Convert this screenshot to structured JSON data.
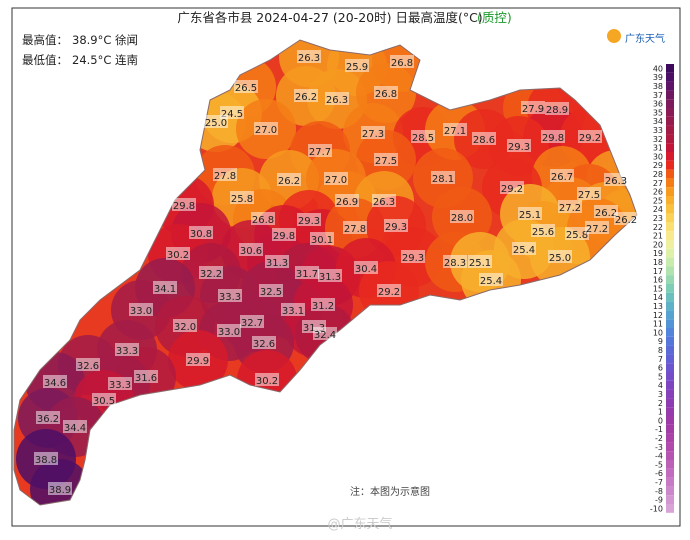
{
  "header": {
    "title": "广东省各市县 2024-04-27 (20-20时) 日最高温度(°C)",
    "qc": "(质控)",
    "logo": "广东天气"
  },
  "info": {
    "max_label": "最高值：",
    "max_text": "38.9°C 徐闻",
    "min_label": "最低值：",
    "min_text": "24.5°C 连南"
  },
  "note": "注：本图为示意图",
  "watermark": "@广东天气",
  "stations": {
    "values": [
      26.3,
      25.9,
      26.8,
      26.5,
      26.2,
      26.3,
      26.8,
      24.5,
      25.0,
      27.0,
      27.3,
      27.9,
      28.9,
      28.5,
      27.1,
      28.6,
      29.8,
      29.2,
      27.7,
      27.5,
      29.3,
      28.1,
      27.8,
      26.2,
      27.0,
      26.7,
      26.3,
      29.2,
      27.5,
      25.8,
      26.9,
      26.3,
      27.2,
      26.2,
      26.2,
      25.1,
      29.8,
      26.8,
      29.3,
      28.0,
      25.6,
      25.8,
      27.2,
      30.8,
      29.8,
      30.1,
      27.8,
      29.3,
      25.4,
      25.0,
      30.2,
      30.6,
      31.3,
      29.3,
      28.3,
      25.1,
      32.2,
      31.7,
      31.3,
      30.4,
      25.4,
      34.1,
      33.3,
      32.5,
      29.2,
      33.0,
      33.1,
      31.2,
      32.7,
      32.0,
      33.0,
      31.3,
      32.4,
      32.6,
      33.3,
      32.6,
      29.9,
      31.6,
      33.3,
      30.2,
      34.6,
      30.5,
      36.2,
      34.4,
      38.8,
      38.9
    ],
    "value_labels": [
      "26.3",
      "25.9",
      "26.8",
      "26.5",
      "26.2",
      "26.3",
      "26.8",
      "24.5",
      "25.0",
      "27.0",
      "27.3",
      "27.9",
      "28.9",
      "28.5",
      "27.1",
      "28.6",
      "29.8",
      "29.2",
      "27.7",
      "27.5",
      "29.3",
      "28.1",
      "27.8",
      "26.2",
      "27.0",
      "26.7",
      "26.3",
      "29.2",
      "27.5",
      "25.8",
      "26.9",
      "26.3",
      "27.2",
      "26.2",
      "26.2",
      "25.1",
      "29.8",
      "26.8",
      "29.3",
      "28.0",
      "25.6",
      "25.8",
      "27.2",
      "30.8",
      "29.8",
      "30.1",
      "27.8",
      "29.3",
      "25.4",
      "25.0",
      "30.2",
      "30.6",
      "31.3",
      "29.3",
      "28.3",
      "25.1",
      "32.2",
      "31.7",
      "31.3",
      "30.4",
      "25.4",
      "34.1",
      "33.3",
      "32.5",
      "29.2",
      "33.0",
      "33.1",
      "31.2",
      "32.7",
      "32.0",
      "33.0",
      "31.3",
      "32.4",
      "32.6",
      "33.3",
      "32.6",
      "29.9",
      "31.6",
      "33.3",
      "30.2",
      "34.6",
      "30.5",
      "36.2",
      "34.4",
      "38.8",
      "38.9"
    ]
  },
  "legend": {
    "ticks": [
      40,
      39,
      38,
      37,
      36,
      35,
      34,
      33,
      32,
      31,
      30,
      29,
      28,
      27,
      26,
      25,
      24,
      23,
      22,
      21,
      20,
      19,
      18,
      17,
      16,
      15,
      14,
      13,
      12,
      11,
      10,
      9,
      8,
      7,
      6,
      5,
      4,
      3,
      2,
      1,
      0,
      -1,
      -2,
      -3,
      -4,
      -5,
      -6,
      -7,
      -8,
      -9,
      -10
    ],
    "colors": [
      "#3d0a5c",
      "#4d0f66",
      "#5e1466",
      "#6e1862",
      "#7d1a5c",
      "#8a1b55",
      "#961c4e",
      "#a31c48",
      "#b01a40",
      "#c41538",
      "#d61a2c",
      "#e82a1e",
      "#f05a14",
      "#f47d16",
      "#f69a20",
      "#f7af2c",
      "#f8c23f",
      "#f9d257",
      "#fadf72",
      "#f8e98d",
      "#eef0a0",
      "#dff0a8",
      "#c9ebab",
      "#b0e3ad",
      "#96d9b0",
      "#7ecdb5",
      "#6bc0be",
      "#5db2c8",
      "#56a3d0",
      "#5394d6",
      "#5285da",
      "#5677da",
      "#5c6ad8",
      "#635fd4",
      "#6b55ce",
      "#744cc7",
      "#7d45c0",
      "#8640b9",
      "#8e3cb2",
      "#963aac",
      "#9d3aa8",
      "#a43ca6",
      "#ab42a8",
      "#b14aac",
      "#b654b2",
      "#bc60b8",
      "#c16cbe",
      "#c77ac5",
      "#cc88cb",
      "#d296d1",
      "#d8a4d7"
    ]
  }
}
